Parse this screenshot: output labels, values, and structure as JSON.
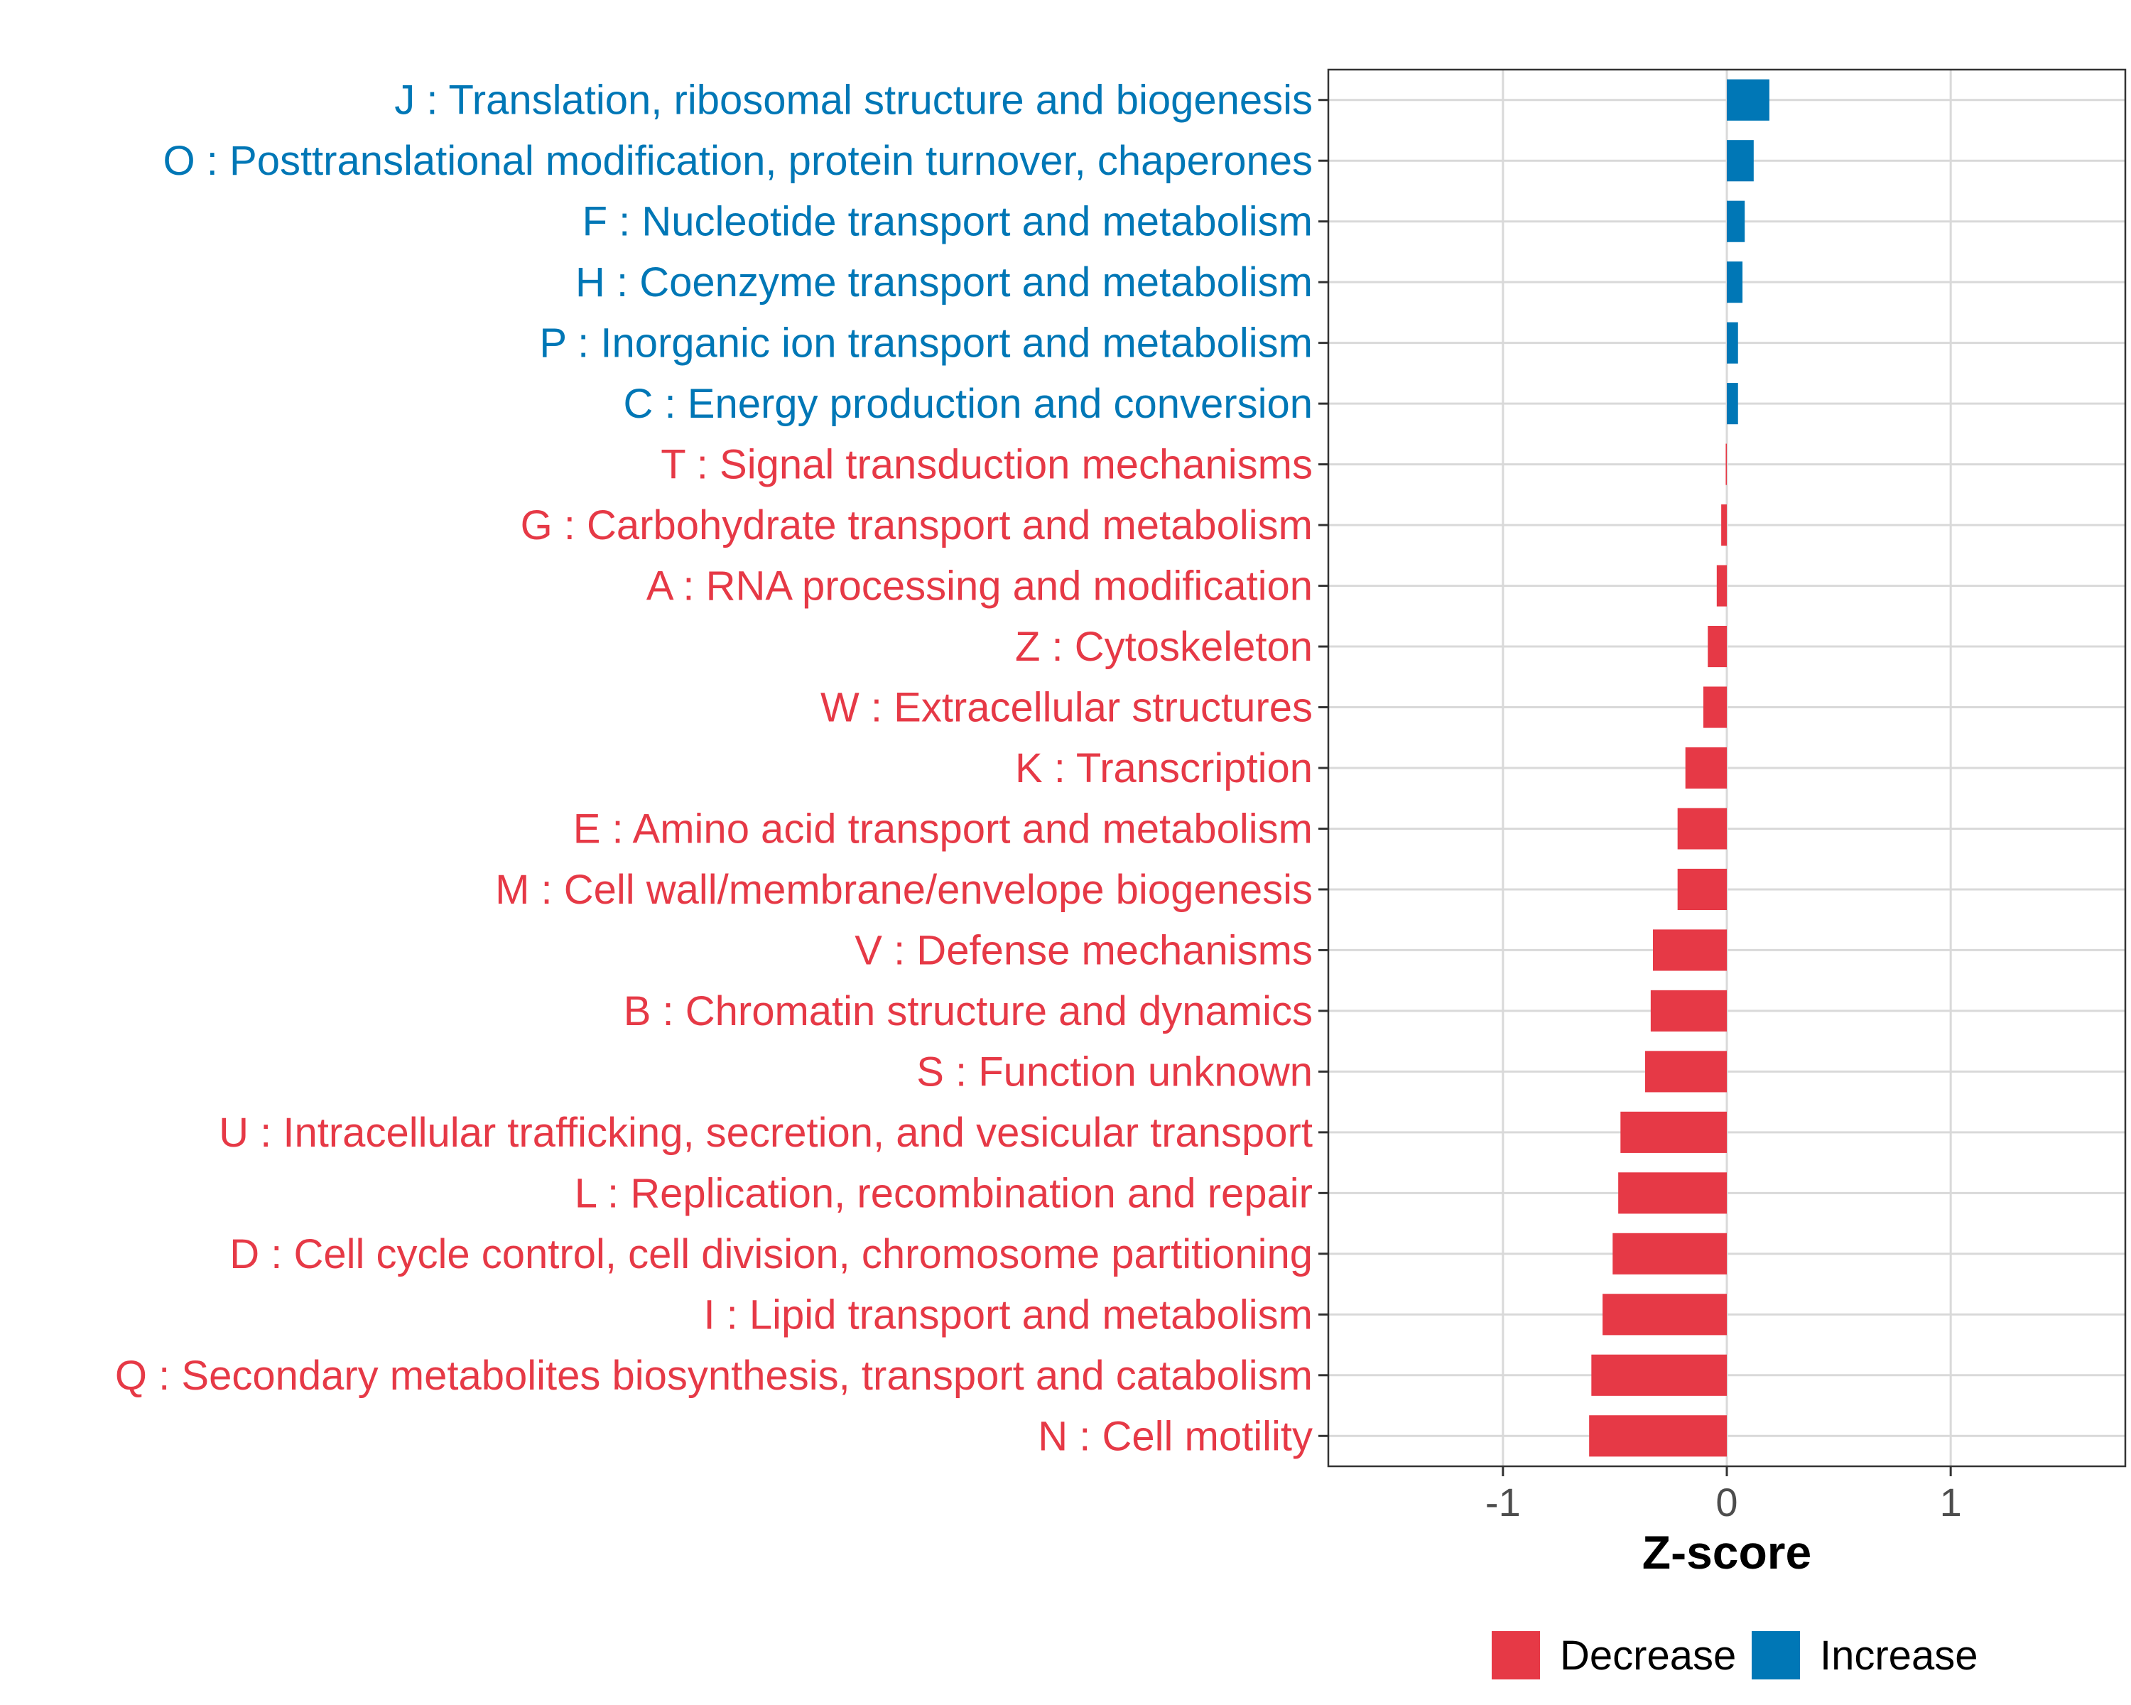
{
  "chart_data": {
    "type": "bar",
    "orientation": "horizontal",
    "title": "",
    "xlabel": "Z-score",
    "ylabel": "",
    "xlim": [
      -1.78,
      1.78
    ],
    "xticks": [
      -1,
      0,
      1
    ],
    "xtick_labels": [
      "-1",
      "0",
      "1"
    ],
    "grid": true,
    "legend_position": "bottom",
    "colors": {
      "Decrease": "#E63946",
      "Increase": "#0077B6"
    },
    "legend": [
      {
        "label": "Decrease",
        "color": "#E63946"
      },
      {
        "label": "Increase",
        "color": "#0077B6"
      }
    ],
    "categories": [
      "J : Translation, ribosomal structure and biogenesis",
      "O : Posttranslational modification, protein turnover, chaperones",
      "F : Nucleotide transport and metabolism",
      "H : Coenzyme transport and metabolism",
      "P : Inorganic ion transport and metabolism",
      "C : Energy production and conversion",
      "T : Signal transduction mechanisms",
      "G : Carbohydrate transport and metabolism",
      "A : RNA processing and modification",
      "Z : Cytoskeleton",
      "W : Extracellular structures",
      "K : Transcription",
      "E : Amino acid transport and metabolism",
      "M : Cell wall/membrane/envelope biogenesis",
      "V : Defense mechanisms",
      "B : Chromatin structure and dynamics",
      "S : Function unknown",
      "U : Intracellular trafficking, secretion, and vesicular transport",
      "L : Replication, recombination and repair",
      "D : Cell cycle control, cell division, chromosome partitioning",
      "I : Lipid transport and metabolism",
      "Q : Secondary metabolites biosynthesis, transport and catabolism",
      "N : Cell motility"
    ],
    "values": [
      0.19,
      0.12,
      0.08,
      0.07,
      0.05,
      0.05,
      -0.005,
      -0.025,
      -0.045,
      -0.085,
      -0.105,
      -0.185,
      -0.22,
      -0.22,
      -0.33,
      -0.34,
      -0.365,
      -0.475,
      -0.485,
      -0.51,
      -0.555,
      -0.605,
      -0.615
    ],
    "groups": [
      "Increase",
      "Increase",
      "Increase",
      "Increase",
      "Increase",
      "Increase",
      "Decrease",
      "Decrease",
      "Decrease",
      "Decrease",
      "Decrease",
      "Decrease",
      "Decrease",
      "Decrease",
      "Decrease",
      "Decrease",
      "Decrease",
      "Decrease",
      "Decrease",
      "Decrease",
      "Decrease",
      "Decrease",
      "Decrease"
    ]
  }
}
